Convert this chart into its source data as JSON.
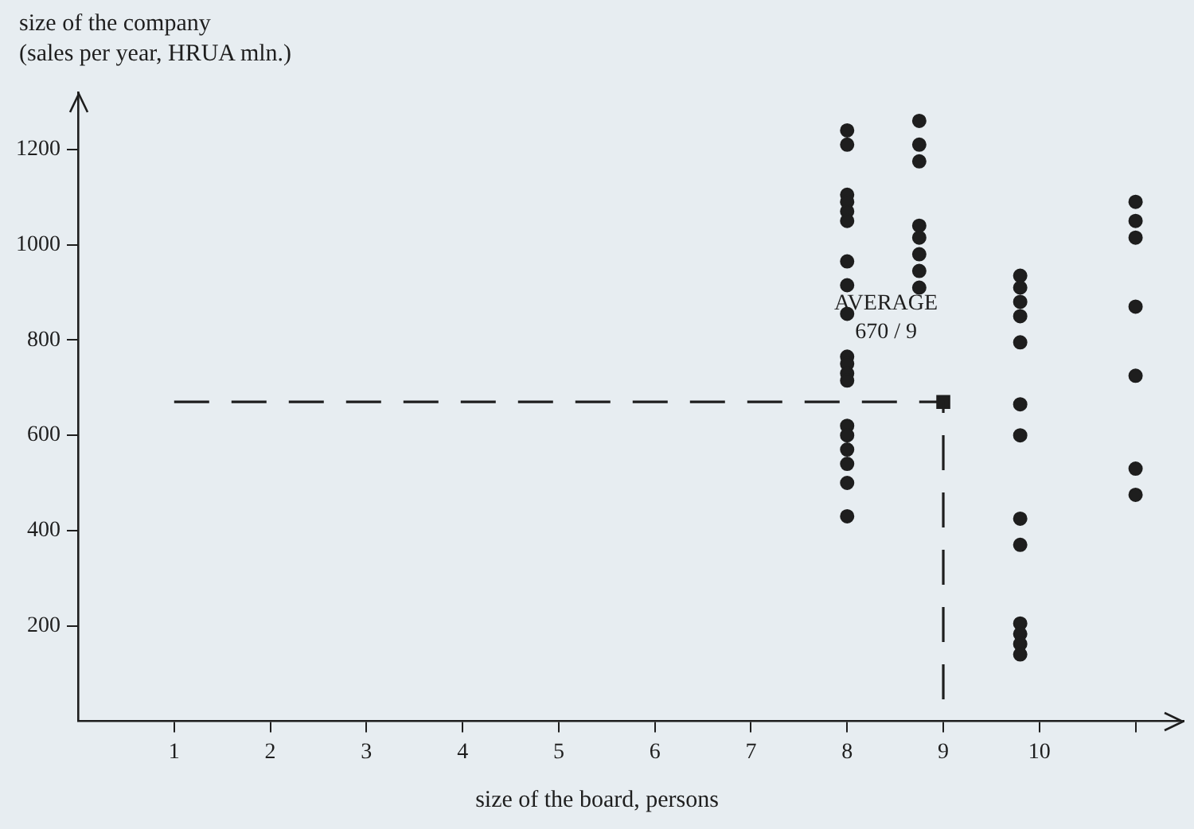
{
  "chart_data": {
    "type": "scatter",
    "xlabel": "size of the board, persons",
    "ylabel": "size of the company\n(sales per year, HRUA mln.)",
    "xlim": [
      0,
      11.5
    ],
    "ylim": [
      0,
      1320
    ],
    "xticks": [
      1,
      2,
      3,
      4,
      5,
      6,
      7,
      8,
      9,
      10,
      {
        "value": 11,
        "label": null
      }
    ],
    "yticks": [
      200,
      400,
      600,
      800,
      1000,
      1200
    ],
    "grid": false,
    "legend": false,
    "series": [
      {
        "marker": "circle",
        "color": "#1e1e1e",
        "x": [
          8,
          8,
          8,
          8,
          8,
          8,
          8,
          8,
          8,
          8,
          8,
          8,
          8,
          8,
          8,
          8,
          8,
          8,
          8,
          8.75,
          8.75,
          8.75,
          8.75,
          8.75,
          8.75,
          8.75,
          8.75,
          9.8,
          9.8,
          9.8,
          9.8,
          9.8,
          9.8,
          9.8,
          9.8,
          9.8,
          9.8,
          9.8,
          9.8,
          9.8,
          11,
          11,
          11,
          11,
          11,
          11,
          11
        ],
        "values": [
          1240,
          1210,
          1105,
          1090,
          1070,
          1050,
          965,
          915,
          855,
          765,
          750,
          730,
          715,
          620,
          600,
          570,
          540,
          500,
          430,
          1260,
          1210,
          1175,
          1040,
          1015,
          980,
          945,
          910,
          935,
          910,
          880,
          850,
          795,
          665,
          600,
          425,
          370,
          205,
          183,
          162,
          140,
          1090,
          1050,
          1015,
          870,
          725,
          530,
          475
        ]
      },
      {
        "type": "line",
        "marker": "none",
        "line_style": "dashed",
        "color": "#1e1e1e",
        "x": [
          1,
          9,
          9
        ],
        "values": [
          670,
          670,
          0
        ]
      },
      {
        "type": "scatter",
        "marker": "square",
        "color": "#1e1e1e",
        "x": [
          9
        ],
        "values": [
          670
        ]
      }
    ],
    "annotations": [
      {
        "text": "AVERAGE\n670 / 9",
        "x": 9,
        "y": 670
      }
    ]
  }
}
